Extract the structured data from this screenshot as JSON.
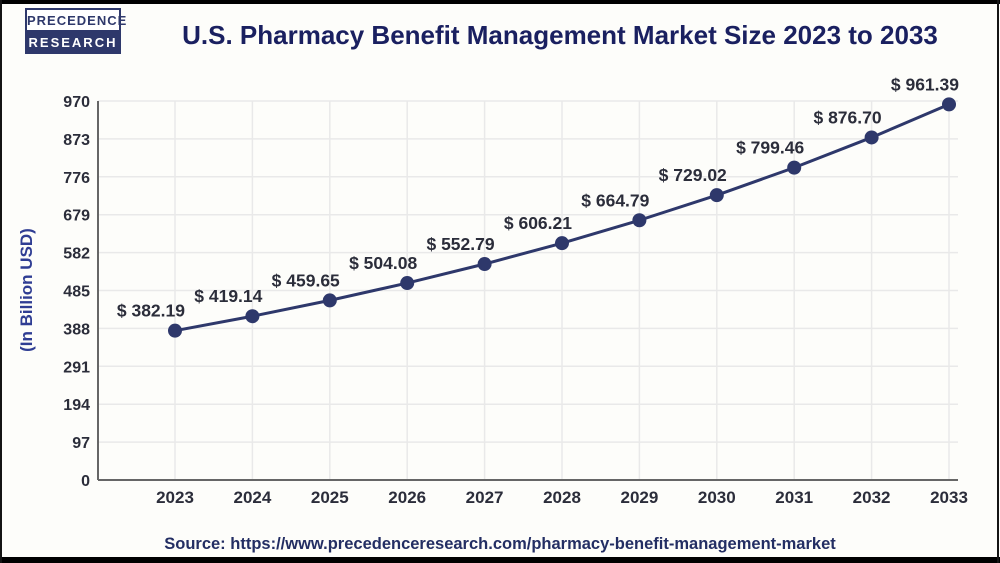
{
  "logo": {
    "line1": "PRECEDENCE",
    "line2": "RESEARCH"
  },
  "header": {
    "title": "U.S. Pharmacy Benefit Management Market Size 2023 to 2033"
  },
  "source": {
    "text": "Source: https://www.precedenceresearch.com/pharmacy-benefit-management-market"
  },
  "theme": {
    "line_color": "#2e386b",
    "marker_color": "#2e386b",
    "title_color": "#1a2060",
    "tick_label_color": "#2b2d3a",
    "data_label_color": "#2b2d3a",
    "ylabel_color": "#2f3d93",
    "source_color": "#232e63",
    "grid_color": "#e9e9e9",
    "axis_color": "#666666",
    "background": "#fdfdfa"
  },
  "chart_data": {
    "type": "line",
    "title": "U.S. Pharmacy Benefit Management Market Size 2023 to 2033",
    "ylabel": "(In Billion USD)",
    "xlabel": "",
    "categories": [
      "2023",
      "2024",
      "2025",
      "2026",
      "2027",
      "2028",
      "2029",
      "2030",
      "2031",
      "2032",
      "2033"
    ],
    "values": [
      382.19,
      419.14,
      459.65,
      504.08,
      552.79,
      606.21,
      664.79,
      729.02,
      799.46,
      876.7,
      961.39
    ],
    "point_labels": [
      "$ 382.19",
      "$ 419.14",
      "$ 459.65",
      "$ 504.08",
      "$ 552.79",
      "$ 606.21",
      "$ 664.79",
      "$ 729.02",
      "$ 799.46",
      "$ 876.70",
      "$ 961.39"
    ],
    "yticks": [
      0,
      97,
      194,
      291,
      388,
      485,
      582,
      679,
      776,
      873,
      970
    ],
    "ylim": [
      0,
      970
    ],
    "grid": true,
    "legend": "none",
    "marker": "circle"
  }
}
